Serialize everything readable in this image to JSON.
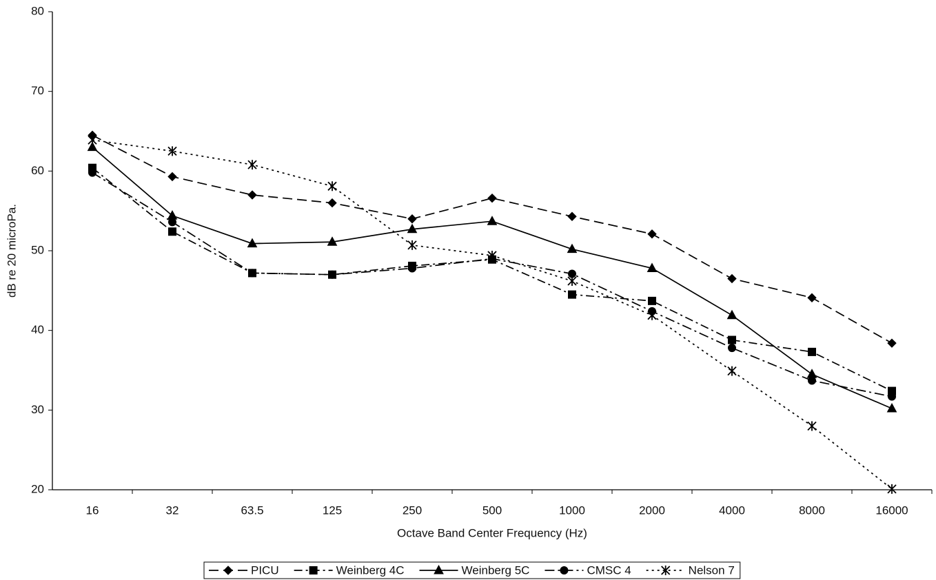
{
  "chart_data": {
    "type": "line",
    "xlabel": "Octave Band Center Frequency (Hz)",
    "ylabel": "dB re 20 microPa.",
    "categories": [
      "16",
      "32",
      "63.5",
      "125",
      "250",
      "500",
      "1000",
      "2000",
      "4000",
      "8000",
      "16000"
    ],
    "ylim": [
      20,
      80
    ],
    "yticks": [
      20,
      30,
      40,
      50,
      60,
      70,
      80
    ],
    "grid": false,
    "legend": "bottom",
    "series": [
      {
        "name": "PICU",
        "color": "#000000",
        "marker": "diamond",
        "dash": "long-dash",
        "values": [
          64.5,
          59.3,
          57.0,
          56.0,
          54.0,
          56.6,
          54.3,
          52.1,
          46.5,
          44.1,
          38.4
        ]
      },
      {
        "name": "Weinberg 4C",
        "color": "#000000",
        "marker": "square",
        "dash": "dash-dot",
        "values": [
          60.4,
          52.4,
          47.2,
          47.0,
          48.1,
          48.9,
          44.5,
          43.7,
          38.8,
          37.3,
          32.4
        ]
      },
      {
        "name": "Weinberg 5C",
        "color": "#000000",
        "marker": "triangle",
        "dash": "solid",
        "values": [
          63.0,
          54.4,
          50.9,
          51.1,
          52.7,
          53.7,
          50.2,
          47.8,
          41.9,
          34.5,
          30.2
        ]
      },
      {
        "name": "CMSC 4",
        "color": "#000000",
        "marker": "circle",
        "dash": "dash-dot-dot",
        "values": [
          59.8,
          53.6,
          47.2,
          47.0,
          47.8,
          49.0,
          47.1,
          42.4,
          37.8,
          33.7,
          31.7
        ]
      },
      {
        "name": "Nelson 7",
        "color": "#000000",
        "marker": "asterisk",
        "dash": "dotted",
        "values": [
          63.9,
          62.5,
          60.8,
          58.1,
          50.7,
          49.4,
          46.2,
          41.9,
          34.9,
          28.0,
          20.1
        ]
      }
    ]
  }
}
